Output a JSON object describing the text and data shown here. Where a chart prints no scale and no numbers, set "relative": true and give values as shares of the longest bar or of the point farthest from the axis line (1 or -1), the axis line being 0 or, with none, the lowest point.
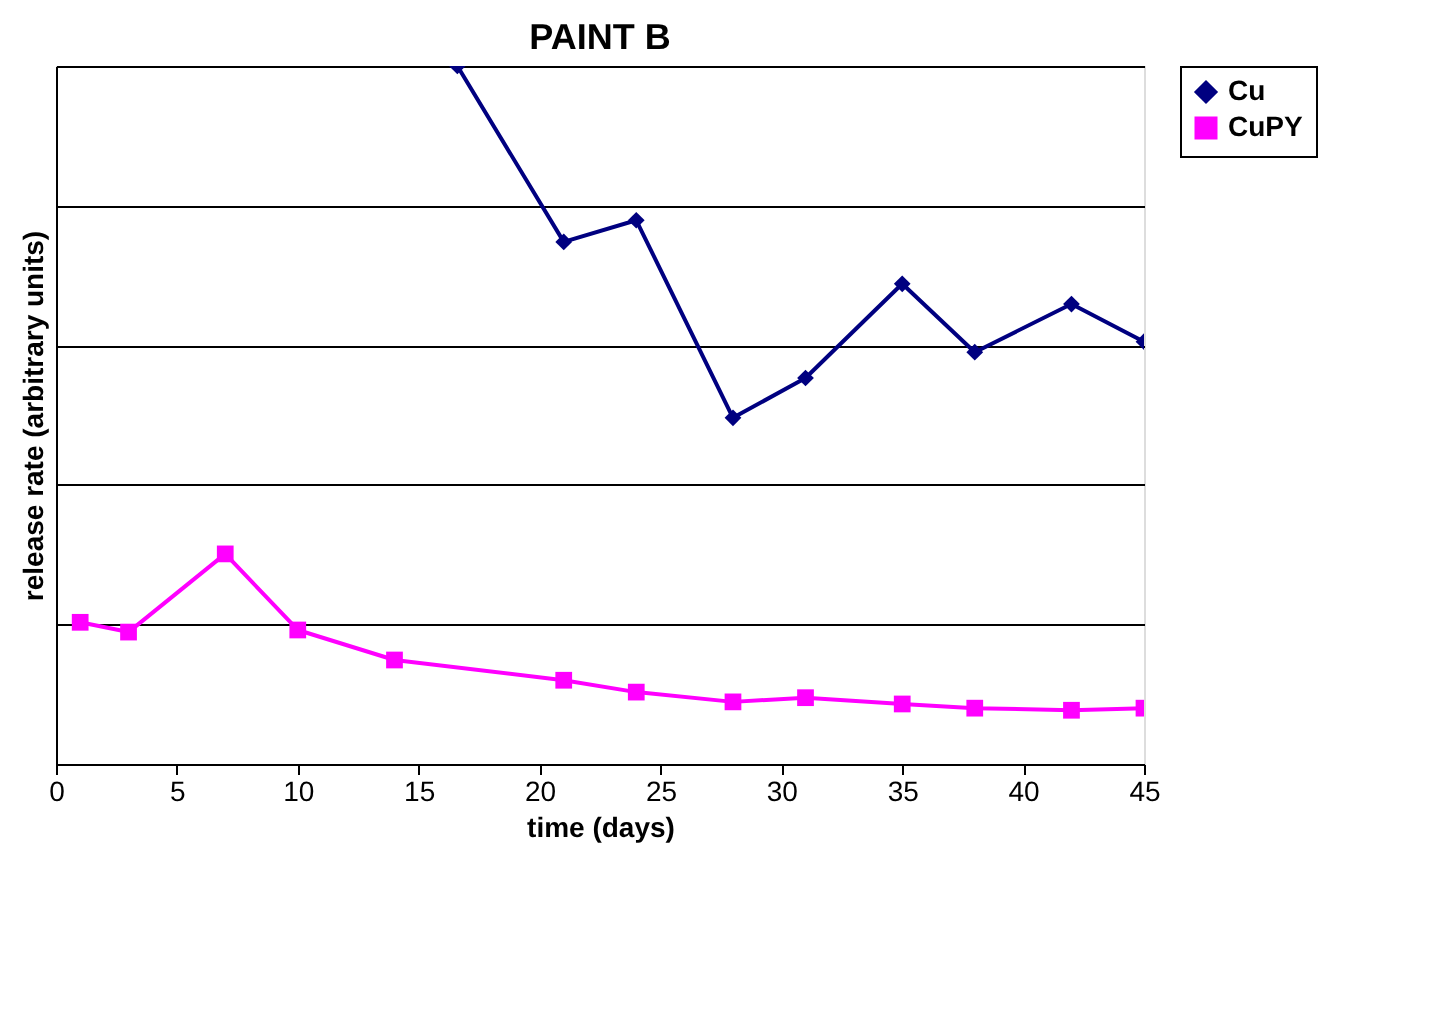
{
  "chart_data": {
    "type": "line",
    "title": "PAINT B",
    "xlabel": "time (days)",
    "ylabel": "release rate (arbitrary units)",
    "relative": true,
    "xlim": [
      0,
      45
    ],
    "xticks": [
      0,
      5,
      10,
      15,
      20,
      25,
      30,
      35,
      40,
      45
    ],
    "grid": "y",
    "legend": "right",
    "line_style": "solid",
    "series": [
      {
        "name": "Cu",
        "color": "#000080",
        "marker": "diamond",
        "x": [
          16.6,
          21,
          24,
          28,
          31,
          35,
          38,
          42,
          45
        ],
        "values": [
          1.0,
          0.748,
          0.779,
          0.496,
          0.553,
          0.688,
          0.59,
          0.659,
          0.605
        ]
      },
      {
        "name": "CuPY",
        "color": "#ff00ff",
        "marker": "square",
        "x": [
          1,
          3,
          7,
          10,
          14,
          21,
          24,
          28,
          31,
          35,
          38,
          42,
          45
        ],
        "values": [
          0.203,
          0.189,
          0.301,
          0.192,
          0.149,
          0.12,
          0.103,
          0.089,
          0.095,
          0.086,
          0.08,
          0.077,
          0.08
        ]
      }
    ]
  }
}
